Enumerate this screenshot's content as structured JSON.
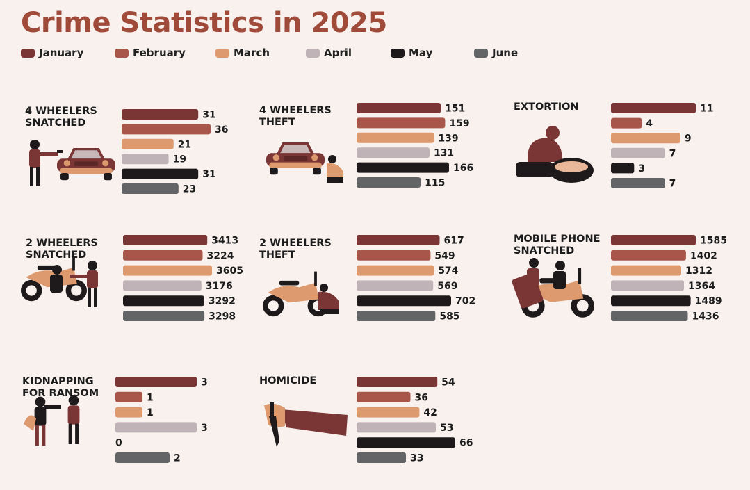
{
  "title": "Crime Statistics in 2025",
  "colors": {
    "January": "#7a3535",
    "February": "#a9564a",
    "March": "#dd9a6e",
    "April": "#c0b3b7",
    "May": "#1e1a1b",
    "June": "#636466",
    "figure_dark": "#7a3535",
    "figure_light": "#dd9a6e",
    "figure_black": "#1e1a1b"
  },
  "legend": [
    "January",
    "February",
    "March",
    "April",
    "May",
    "June"
  ],
  "chart_data": [
    {
      "type": "bar",
      "title_lines": [
        "4 WHEELERS",
        "SNATCHED"
      ],
      "icon": "car-robbery-icon",
      "categories": [
        "January",
        "February",
        "March",
        "April",
        "May",
        "June"
      ],
      "values": [
        31,
        36,
        21,
        19,
        31,
        23
      ]
    },
    {
      "type": "bar",
      "title_lines": [
        "4 WHEELERS",
        "THEFT"
      ],
      "icon": "car-theft-icon",
      "categories": [
        "January",
        "February",
        "March",
        "April",
        "May",
        "June"
      ],
      "values": [
        151,
        159,
        139,
        131,
        166,
        115
      ]
    },
    {
      "type": "bar",
      "title_lines": [
        "EXTORTION"
      ],
      "icon": "extortion-icon",
      "categories": [
        "January",
        "February",
        "March",
        "April",
        "May",
        "June"
      ],
      "values": [
        11,
        4,
        9,
        7,
        3,
        7
      ]
    },
    {
      "type": "bar",
      "title_lines": [
        "2 WHEELERS",
        "SNATCHED"
      ],
      "icon": "bike-robbery-icon",
      "categories": [
        "January",
        "February",
        "March",
        "April",
        "May",
        "June"
      ],
      "values": [
        3413,
        3224,
        3605,
        3176,
        3292,
        3298
      ]
    },
    {
      "type": "bar",
      "title_lines": [
        "2 WHEELERS",
        "THEFT"
      ],
      "icon": "bike-theft-icon",
      "categories": [
        "January",
        "February",
        "March",
        "April",
        "May",
        "June"
      ],
      "values": [
        617,
        549,
        574,
        569,
        702,
        585
      ]
    },
    {
      "type": "bar",
      "title_lines": [
        "MOBILE PHONE",
        "SNATCHED"
      ],
      "icon": "phone-snatching-icon",
      "categories": [
        "January",
        "February",
        "March",
        "April",
        "May",
        "June"
      ],
      "values": [
        1585,
        1402,
        1312,
        1364,
        1489,
        1436
      ]
    },
    {
      "type": "bar",
      "title_lines": [
        "KIDNAPPING",
        "FOR RANSOM"
      ],
      "icon": "kidnapping-icon",
      "categories": [
        "January",
        "February",
        "March",
        "April",
        "May",
        "June"
      ],
      "values": [
        3,
        1,
        1,
        3,
        0,
        2
      ]
    },
    {
      "type": "bar",
      "title_lines": [
        "HOMICIDE"
      ],
      "icon": "knife-hand-icon",
      "categories": [
        "January",
        "February",
        "March",
        "April",
        "May",
        "June"
      ],
      "values": [
        54,
        36,
        42,
        53,
        66,
        33
      ]
    }
  ]
}
